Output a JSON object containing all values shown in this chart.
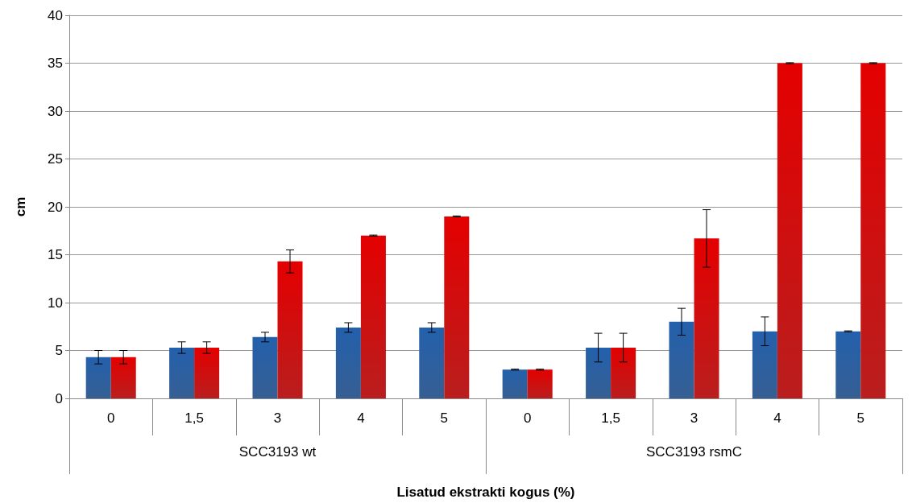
{
  "chart_data": {
    "type": "bar",
    "xlabel": "Lisatud ekstrakti kogus (%)",
    "ylabel": "cm",
    "categories": [
      "0",
      "1,5",
      "3",
      "4",
      "5",
      "0",
      "1,5",
      "3",
      "4",
      "5"
    ],
    "series": [
      {
        "color": "#1b4a85",
        "values": [
          4.3,
          5.3,
          6.4,
          7.4,
          7.4,
          3.0,
          5.3,
          8.0,
          7.0,
          7.0
        ],
        "errors": [
          0.7,
          0.6,
          0.5,
          0.5,
          0.5,
          0.05,
          1.5,
          1.4,
          1.5,
          0.05
        ]
      },
      {
        "color": "#b00000",
        "values": [
          4.3,
          5.3,
          14.3,
          17.0,
          19.0,
          3.0,
          5.3,
          16.7,
          35.0,
          35.0
        ],
        "errors": [
          0.7,
          0.6,
          1.2,
          0.05,
          0.05,
          0.05,
          1.5,
          3.0,
          0.05,
          0.05
        ]
      }
    ],
    "annotations": [
      "SCC3193 wt",
      "SCC3193 rsmC"
    ],
    "ylim": [
      0,
      40
    ],
    "yticks": [
      0,
      5,
      10,
      15,
      20,
      25,
      30,
      35,
      40
    ],
    "grid": "y"
  }
}
